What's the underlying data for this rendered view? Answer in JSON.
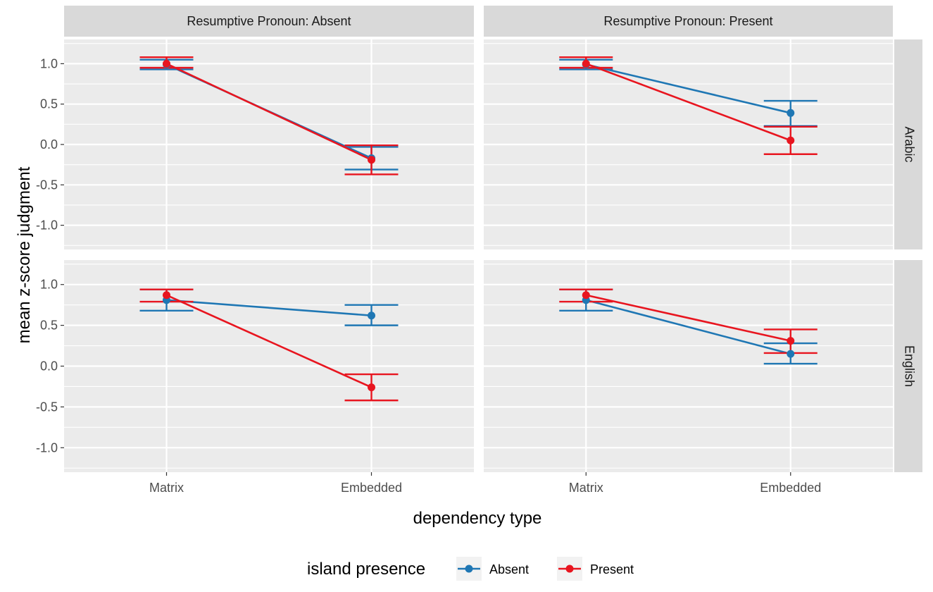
{
  "chart_data": {
    "type": "line",
    "xlabel": "dependency type",
    "ylabel": "mean z-score judgment",
    "categories": [
      "Matrix",
      "Embedded"
    ],
    "ylim": [
      -1.3,
      1.3
    ],
    "y_ticks": [
      1.0,
      0.5,
      0.0,
      -0.5,
      -1.0
    ],
    "y_tick_labels": [
      "1.0",
      "0.5",
      "0.0",
      "-0.5",
      "-1.0"
    ],
    "facet_cols": [
      "Resumptive Pronoun: Absent",
      "Resumptive Pronoun: Present"
    ],
    "facet_rows": [
      "Arabic",
      "English"
    ],
    "legend": {
      "title": "island presence",
      "position": "bottom",
      "entries": [
        {
          "name": "Absent",
          "color": "#1f77b4"
        },
        {
          "name": "Present",
          "color": "#e8151f"
        }
      ]
    },
    "panels": [
      {
        "row": "Arabic",
        "col": "Resumptive Pronoun: Absent",
        "series": [
          {
            "name": "Absent",
            "values": [
              0.99,
              -0.17
            ],
            "lower": [
              0.93,
              -0.31
            ],
            "upper": [
              1.05,
              -0.03
            ]
          },
          {
            "name": "Present",
            "values": [
              1.0,
              -0.19
            ],
            "lower": [
              0.95,
              -0.37
            ],
            "upper": [
              1.08,
              -0.01
            ]
          }
        ]
      },
      {
        "row": "Arabic",
        "col": "Resumptive Pronoun: Present",
        "series": [
          {
            "name": "Absent",
            "values": [
              0.99,
              0.39
            ],
            "lower": [
              0.93,
              0.23
            ],
            "upper": [
              1.05,
              0.54
            ]
          },
          {
            "name": "Present",
            "values": [
              1.0,
              0.05
            ],
            "lower": [
              0.95,
              -0.12
            ],
            "upper": [
              1.08,
              0.22
            ]
          }
        ]
      },
      {
        "row": "English",
        "col": "Resumptive Pronoun: Absent",
        "series": [
          {
            "name": "Absent",
            "values": [
              0.81,
              0.62
            ],
            "lower": [
              0.68,
              0.5
            ],
            "upper": [
              0.94,
              0.75
            ]
          },
          {
            "name": "Present",
            "values": [
              0.87,
              -0.26
            ],
            "lower": [
              0.79,
              -0.42
            ],
            "upper": [
              0.94,
              -0.1
            ]
          }
        ]
      },
      {
        "row": "English",
        "col": "Resumptive Pronoun: Present",
        "series": [
          {
            "name": "Absent",
            "values": [
              0.81,
              0.15
            ],
            "lower": [
              0.68,
              0.03
            ],
            "upper": [
              0.94,
              0.28
            ]
          },
          {
            "name": "Present",
            "values": [
              0.87,
              0.31
            ],
            "lower": [
              0.79,
              0.16
            ],
            "upper": [
              0.94,
              0.45
            ]
          }
        ]
      }
    ]
  }
}
